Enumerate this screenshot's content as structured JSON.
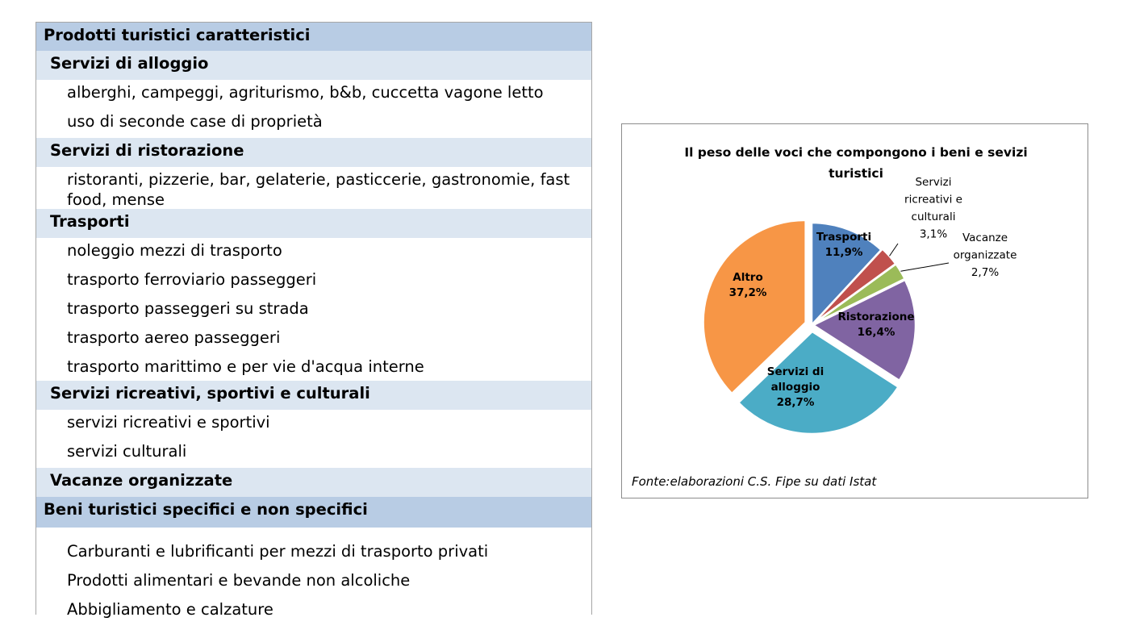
{
  "table": {
    "rows": [
      {
        "type": "main",
        "text": "Prodotti turistici caratteristici"
      },
      {
        "type": "sub",
        "text": "Servizi di alloggio"
      },
      {
        "type": "item",
        "text": "alberghi, campeggi, agriturismo, b&b, cuccetta vagone letto"
      },
      {
        "type": "item",
        "text": "uso di seconde case di proprietà"
      },
      {
        "type": "sub",
        "text": "Servizi di ristorazione"
      },
      {
        "type": "item",
        "text": "ristoranti, pizzerie, bar, gelaterie, pasticcerie, gastronomie, fast food, mense"
      },
      {
        "type": "sub",
        "text": "Trasporti"
      },
      {
        "type": "item",
        "text": "noleggio mezzi di trasporto"
      },
      {
        "type": "item",
        "text": "trasporto ferroviario passeggeri"
      },
      {
        "type": "item",
        "text": " trasporto passeggeri su strada"
      },
      {
        "type": "item",
        "text": "trasporto aereo passeggeri"
      },
      {
        "type": "item",
        "text": "trasporto marittimo e per vie d'acqua interne"
      },
      {
        "type": "sub",
        "text": "Servizi ricreativi, sportivi e culturali"
      },
      {
        "type": "item",
        "text": "servizi ricreativi e sportivi"
      },
      {
        "type": "item",
        "text": "servizi culturali"
      },
      {
        "type": "sub",
        "text": "Vacanze organizzate"
      },
      {
        "type": "main",
        "text": "Beni turistici specifici e non specifici"
      },
      {
        "type": "item",
        "text": "Carburanti e lubrificanti per mezzi di trasporto privati"
      },
      {
        "type": "item",
        "text": "Prodotti alimentari e bevande non alcoliche"
      },
      {
        "type": "item",
        "text": "Abbigliamento e calzature"
      }
    ]
  },
  "chart_data": {
    "type": "pie",
    "title": "Il peso delle voci che compongono i beni e sevizi turistici",
    "source": "Fonte:elaborazioni C.S. Fipe su dati Istat",
    "slices": [
      {
        "label": [
          "Trasporti"
        ],
        "value_label": "11,9%",
        "value": 11.9,
        "color": "#4f81bd"
      },
      {
        "label": [
          "Servizi",
          "ricreativi e",
          "culturali"
        ],
        "value_label": "3,1%",
        "value": 3.1,
        "color": "#c0504d"
      },
      {
        "label": [
          "Vacanze",
          "organizzate"
        ],
        "value_label": "2,7%",
        "value": 2.7,
        "color": "#9bbb59"
      },
      {
        "label": [
          "Ristorazione"
        ],
        "value_label": "16,4%",
        "value": 16.4,
        "color": "#8064a2"
      },
      {
        "label": [
          "Servizi di",
          "alloggio"
        ],
        "value_label": "28,7%",
        "value": 28.7,
        "color": "#4bacc6"
      },
      {
        "label": [
          "Altro"
        ],
        "value_label": "37,2%",
        "value": 37.2,
        "color": "#f79646"
      }
    ]
  }
}
